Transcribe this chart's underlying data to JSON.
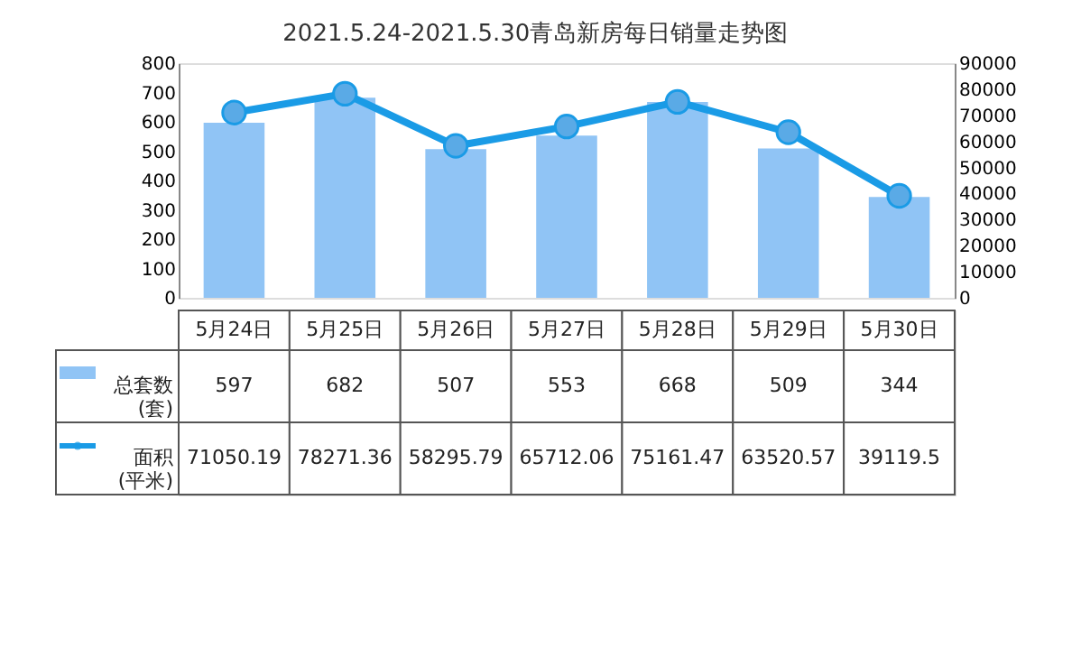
{
  "chart_data": {
    "type": "bar",
    "title": "2021.5.24-2021.5.30青岛新房每日销量走势图",
    "categories": [
      "5月24日",
      "5月25日",
      "5月26日",
      "5月27日",
      "5月28日",
      "5月29日",
      "5月30日"
    ],
    "series": [
      {
        "name": "总套数\n(套)",
        "color": "#90c4f5",
        "values": [
          597,
          682,
          507,
          553,
          668,
          509,
          344
        ]
      },
      {
        "name": "面积\n(平米)",
        "type": "line",
        "axis": "y2",
        "color": "#1a9be6",
        "values": [
          71050.19,
          78271.36,
          58295.79,
          65712.06,
          75161.47,
          63520.57,
          39119.5
        ]
      }
    ],
    "ylim": [
      0,
      800
    ],
    "yticks": [
      0,
      100,
      200,
      300,
      400,
      500,
      600,
      700,
      800
    ],
    "y2lim": [
      0,
      90000
    ],
    "y2ticks": [
      0,
      10000,
      20000,
      30000,
      40000,
      50000,
      60000,
      70000,
      80000,
      90000
    ],
    "grid": false,
    "legend": "bottom",
    "marker": "circle",
    "line_style": "solid",
    "data_labels": true
  }
}
